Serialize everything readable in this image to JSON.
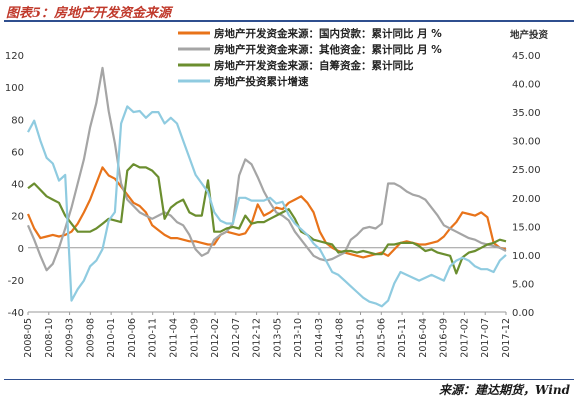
{
  "figure": {
    "title": "图表5：房地产开发资金来源",
    "source": "来源：建达期货，Wind"
  },
  "chart_data": {
    "type": "line",
    "x_ticks": [
      "2008-05",
      "2008-10",
      "2009-03",
      "2009-08",
      "2010-01",
      "2010-06",
      "2010-11",
      "2011-04",
      "2011-09",
      "2012-02",
      "2012-07",
      "2012-12",
      "2013-05",
      "2013-10",
      "2014-03",
      "2014-08",
      "2015-01",
      "2015-06",
      "2015-11",
      "2016-04",
      "2016-09",
      "2017-02",
      "2017-07",
      "2017-12"
    ],
    "left_axis": {
      "ylim": [
        -40,
        120
      ],
      "ticks": [
        -40,
        -20,
        0,
        20,
        40,
        60,
        80,
        100,
        120
      ]
    },
    "right_axis": {
      "label": "地产投资",
      "ylim": [
        0,
        45
      ],
      "ticks": [
        "0.00",
        "5.00",
        "10.00",
        "15.00",
        "20.00",
        "25.00",
        "30.00",
        "35.00",
        "40.00",
        "45.00"
      ]
    },
    "legend_position": "top-center",
    "grid": false,
    "series": [
      {
        "name": "房地产开发资金来源：国内贷款：累计同比 月 %",
        "color": "#e8731a",
        "axis": "left",
        "points": [
          [
            0,
            21
          ],
          [
            1,
            12
          ],
          [
            2,
            6
          ],
          [
            3,
            7
          ],
          [
            4,
            8
          ],
          [
            5,
            7
          ],
          [
            6,
            8
          ],
          [
            7,
            10
          ],
          [
            8,
            15
          ],
          [
            9,
            22
          ],
          [
            10,
            30
          ],
          [
            11,
            40
          ],
          [
            12,
            50
          ],
          [
            13,
            45
          ],
          [
            14,
            43
          ],
          [
            15,
            38
          ],
          [
            16,
            33
          ],
          [
            17,
            28
          ],
          [
            18,
            26
          ],
          [
            19,
            22
          ],
          [
            20,
            14
          ],
          [
            21,
            11
          ],
          [
            22,
            8
          ],
          [
            23,
            6
          ],
          [
            24,
            6
          ],
          [
            25,
            5
          ],
          [
            26,
            4
          ],
          [
            27,
            4
          ],
          [
            28,
            3
          ],
          [
            29,
            2
          ],
          [
            30,
            2
          ],
          [
            31,
            8
          ],
          [
            32,
            10
          ],
          [
            33,
            9
          ],
          [
            34,
            8
          ],
          [
            35,
            9
          ],
          [
            36,
            15
          ],
          [
            37,
            27
          ],
          [
            38,
            20
          ],
          [
            39,
            22
          ],
          [
            40,
            25
          ],
          [
            41,
            24
          ],
          [
            42,
            28
          ],
          [
            43,
            30
          ],
          [
            44,
            32
          ],
          [
            45,
            28
          ],
          [
            46,
            22
          ],
          [
            47,
            10
          ],
          [
            48,
            3
          ],
          [
            49,
            0
          ],
          [
            50,
            -2
          ],
          [
            51,
            -3
          ],
          [
            52,
            -4
          ],
          [
            53,
            -5
          ],
          [
            54,
            -6
          ],
          [
            55,
            -5
          ],
          [
            56,
            -4
          ],
          [
            57,
            -3
          ],
          [
            58,
            -5
          ],
          [
            59,
            -1
          ],
          [
            60,
            3
          ],
          [
            61,
            4
          ],
          [
            62,
            3
          ],
          [
            63,
            2
          ],
          [
            64,
            2
          ],
          [
            65,
            3
          ],
          [
            66,
            4
          ],
          [
            67,
            7
          ],
          [
            68,
            12
          ],
          [
            69,
            16
          ],
          [
            70,
            22
          ],
          [
            71,
            21
          ],
          [
            72,
            20
          ],
          [
            73,
            22
          ],
          [
            74,
            19
          ],
          [
            75,
            3
          ],
          [
            76,
            0
          ],
          [
            77,
            -1
          ]
        ]
      },
      {
        "name": "房地产开发资金来源：其他资金：累计同比 月 %",
        "color": "#a5a5a5",
        "axis": "left",
        "points": [
          [
            0,
            14
          ],
          [
            1,
            5
          ],
          [
            2,
            -5
          ],
          [
            3,
            -14
          ],
          [
            4,
            -10
          ],
          [
            5,
            0
          ],
          [
            6,
            12
          ],
          [
            7,
            25
          ],
          [
            8,
            40
          ],
          [
            9,
            55
          ],
          [
            10,
            75
          ],
          [
            11,
            90
          ],
          [
            12,
            112
          ],
          [
            13,
            85
          ],
          [
            14,
            65
          ],
          [
            15,
            40
          ],
          [
            16,
            30
          ],
          [
            17,
            26
          ],
          [
            18,
            22
          ],
          [
            19,
            20
          ],
          [
            20,
            18
          ],
          [
            21,
            20
          ],
          [
            22,
            22
          ],
          [
            23,
            20
          ],
          [
            24,
            16
          ],
          [
            25,
            14
          ],
          [
            26,
            8
          ],
          [
            27,
            -1
          ],
          [
            28,
            -5
          ],
          [
            29,
            -3
          ],
          [
            30,
            5
          ],
          [
            31,
            8
          ],
          [
            32,
            10
          ],
          [
            33,
            15
          ],
          [
            34,
            45
          ],
          [
            35,
            55
          ],
          [
            36,
            52
          ],
          [
            37,
            44
          ],
          [
            38,
            35
          ],
          [
            39,
            28
          ],
          [
            40,
            22
          ],
          [
            41,
            20
          ],
          [
            42,
            17
          ],
          [
            43,
            10
          ],
          [
            44,
            5
          ],
          [
            45,
            0
          ],
          [
            46,
            -5
          ],
          [
            47,
            -7
          ],
          [
            48,
            -8
          ],
          [
            49,
            -7
          ],
          [
            50,
            -5
          ],
          [
            51,
            -3
          ],
          [
            52,
            5
          ],
          [
            53,
            8
          ],
          [
            54,
            12
          ],
          [
            55,
            13
          ],
          [
            56,
            12
          ],
          [
            57,
            15
          ],
          [
            58,
            40
          ],
          [
            59,
            40
          ],
          [
            60,
            38
          ],
          [
            61,
            35
          ],
          [
            62,
            33
          ],
          [
            63,
            32
          ],
          [
            64,
            30
          ],
          [
            65,
            25
          ],
          [
            66,
            20
          ],
          [
            67,
            14
          ],
          [
            68,
            12
          ],
          [
            69,
            10
          ],
          [
            70,
            8
          ],
          [
            71,
            6
          ],
          [
            72,
            5
          ],
          [
            73,
            3
          ],
          [
            74,
            2
          ],
          [
            75,
            1
          ],
          [
            76,
            0
          ],
          [
            77,
            -2
          ]
        ]
      },
      {
        "name": "房地产开发资金来源：自筹资金：累计同比",
        "color": "#6b8e2f",
        "axis": "left",
        "points": [
          [
            0,
            37
          ],
          [
            1,
            40
          ],
          [
            2,
            36
          ],
          [
            3,
            32
          ],
          [
            4,
            30
          ],
          [
            5,
            28
          ],
          [
            6,
            20
          ],
          [
            7,
            15
          ],
          [
            8,
            10
          ],
          [
            9,
            10
          ],
          [
            10,
            10
          ],
          [
            11,
            12
          ],
          [
            12,
            15
          ],
          [
            13,
            18
          ],
          [
            14,
            17
          ],
          [
            15,
            16
          ],
          [
            16,
            48
          ],
          [
            17,
            52
          ],
          [
            18,
            50
          ],
          [
            19,
            50
          ],
          [
            20,
            48
          ],
          [
            21,
            44
          ],
          [
            22,
            18
          ],
          [
            23,
            25
          ],
          [
            24,
            28
          ],
          [
            25,
            30
          ],
          [
            26,
            22
          ],
          [
            27,
            20
          ],
          [
            28,
            20
          ],
          [
            29,
            42
          ],
          [
            30,
            10
          ],
          [
            31,
            10
          ],
          [
            32,
            12
          ],
          [
            33,
            13
          ],
          [
            34,
            12
          ],
          [
            35,
            20
          ],
          [
            36,
            15
          ],
          [
            37,
            16
          ],
          [
            38,
            16
          ],
          [
            39,
            18
          ],
          [
            40,
            20
          ],
          [
            41,
            22
          ],
          [
            42,
            24
          ],
          [
            43,
            18
          ],
          [
            44,
            10
          ],
          [
            45,
            8
          ],
          [
            46,
            5
          ],
          [
            47,
            4
          ],
          [
            48,
            3
          ],
          [
            49,
            2
          ],
          [
            50,
            -3
          ],
          [
            51,
            -2
          ],
          [
            52,
            -2
          ],
          [
            53,
            -3
          ],
          [
            54,
            -2
          ],
          [
            55,
            -3
          ],
          [
            56,
            -4
          ],
          [
            57,
            -4
          ],
          [
            58,
            2
          ],
          [
            59,
            2
          ],
          [
            60,
            3
          ],
          [
            61,
            3
          ],
          [
            62,
            3
          ],
          [
            63,
            1
          ],
          [
            64,
            -2
          ],
          [
            65,
            -1
          ],
          [
            66,
            -3
          ],
          [
            67,
            -4
          ],
          [
            68,
            -5
          ],
          [
            69,
            -16
          ],
          [
            70,
            -6
          ],
          [
            71,
            -3
          ],
          [
            72,
            -2
          ],
          [
            73,
            0
          ],
          [
            74,
            2
          ],
          [
            75,
            3
          ],
          [
            76,
            5
          ],
          [
            77,
            4
          ]
        ]
      },
      {
        "name": "房地产投资累计增速",
        "color": "#8fcbe0",
        "axis": "right",
        "points": [
          [
            0,
            31.5
          ],
          [
            1,
            33.5
          ],
          [
            2,
            30.0
          ],
          [
            3,
            27.0
          ],
          [
            4,
            26.0
          ],
          [
            5,
            23.0
          ],
          [
            6,
            24.0
          ],
          [
            7,
            2.0
          ],
          [
            8,
            4.0
          ],
          [
            9,
            5.5
          ],
          [
            10,
            8.0
          ],
          [
            11,
            9.0
          ],
          [
            12,
            11.0
          ],
          [
            13,
            16.0
          ],
          [
            14,
            17.5
          ],
          [
            15,
            33.0
          ],
          [
            16,
            36.0
          ],
          [
            17,
            35.0
          ],
          [
            18,
            35.2
          ],
          [
            19,
            34.0
          ],
          [
            20,
            35.0
          ],
          [
            21,
            35.0
          ],
          [
            22,
            33.0
          ],
          [
            23,
            34.0
          ],
          [
            24,
            33.0
          ],
          [
            25,
            30.0
          ],
          [
            26,
            27.0
          ],
          [
            27,
            24.0
          ],
          [
            28,
            22.5
          ],
          [
            29,
            21.0
          ],
          [
            30,
            17.5
          ],
          [
            31,
            16.0
          ],
          [
            32,
            15.5
          ],
          [
            33,
            15.5
          ],
          [
            34,
            20.0
          ],
          [
            35,
            20.0
          ],
          [
            36,
            19.5
          ],
          [
            37,
            19.5
          ],
          [
            38,
            19.5
          ],
          [
            39,
            20.0
          ],
          [
            40,
            19.0
          ],
          [
            41,
            19.3
          ],
          [
            42,
            17.0
          ],
          [
            43,
            15.5
          ],
          [
            44,
            14.5
          ],
          [
            45,
            13.5
          ],
          [
            46,
            12.0
          ],
          [
            47,
            11.0
          ],
          [
            48,
            9.0
          ],
          [
            49,
            7.0
          ],
          [
            50,
            6.5
          ],
          [
            51,
            5.5
          ],
          [
            52,
            4.5
          ],
          [
            53,
            3.5
          ],
          [
            54,
            2.5
          ],
          [
            55,
            1.8
          ],
          [
            56,
            1.5
          ],
          [
            57,
            1.0
          ],
          [
            58,
            2.0
          ],
          [
            59,
            5.0
          ],
          [
            60,
            7.0
          ],
          [
            61,
            6.5
          ],
          [
            62,
            6.0
          ],
          [
            63,
            5.5
          ],
          [
            64,
            6.0
          ],
          [
            65,
            6.5
          ],
          [
            66,
            6.0
          ],
          [
            67,
            5.5
          ],
          [
            68,
            8.0
          ],
          [
            69,
            9.0
          ],
          [
            70,
            9.5
          ],
          [
            71,
            9.0
          ],
          [
            72,
            8.0
          ],
          [
            73,
            7.5
          ],
          [
            74,
            7.5
          ],
          [
            75,
            7.0
          ],
          [
            76,
            9.0
          ],
          [
            77,
            10.0
          ]
        ]
      }
    ]
  }
}
